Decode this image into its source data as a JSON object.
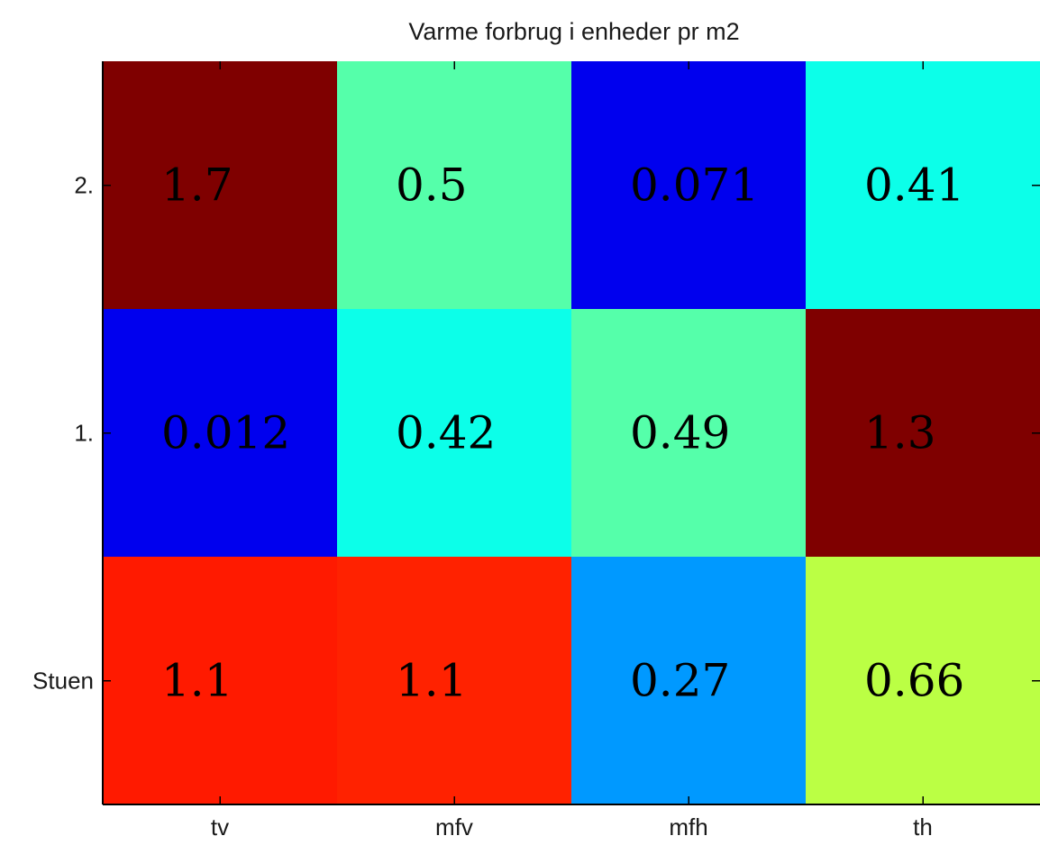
{
  "chart_data": {
    "type": "heatmap",
    "title": "Varme forbrug i enheder pr m2",
    "x_categories": [
      "tv",
      "mfv",
      "mfh",
      "th"
    ],
    "y_categories": [
      "2.",
      "1.",
      "Stuen"
    ],
    "values": [
      [
        1.7,
        0.5,
        0.071,
        0.41
      ],
      [
        0.012,
        0.42,
        0.49,
        1.3
      ],
      [
        1.1,
        1.1,
        0.27,
        0.66
      ]
    ],
    "value_labels": [
      [
        "1.7",
        "0.5",
        "0.071",
        "0.41"
      ],
      [
        "0.012",
        "0.42",
        "0.49",
        "1.3"
      ],
      [
        "1.1",
        "1.1",
        "0.27",
        "0.66"
      ]
    ],
    "cell_colors": [
      [
        "#7f0000",
        "#55ffaa",
        "#0000ee",
        "#0cffe9"
      ],
      [
        "#0000ee",
        "#0cffe9",
        "#55ffaa",
        "#7f0000"
      ],
      [
        "#ff1a00",
        "#ff2200",
        "#0099ff",
        "#bbff44"
      ]
    ],
    "colormap": "jet",
    "grid": false
  }
}
